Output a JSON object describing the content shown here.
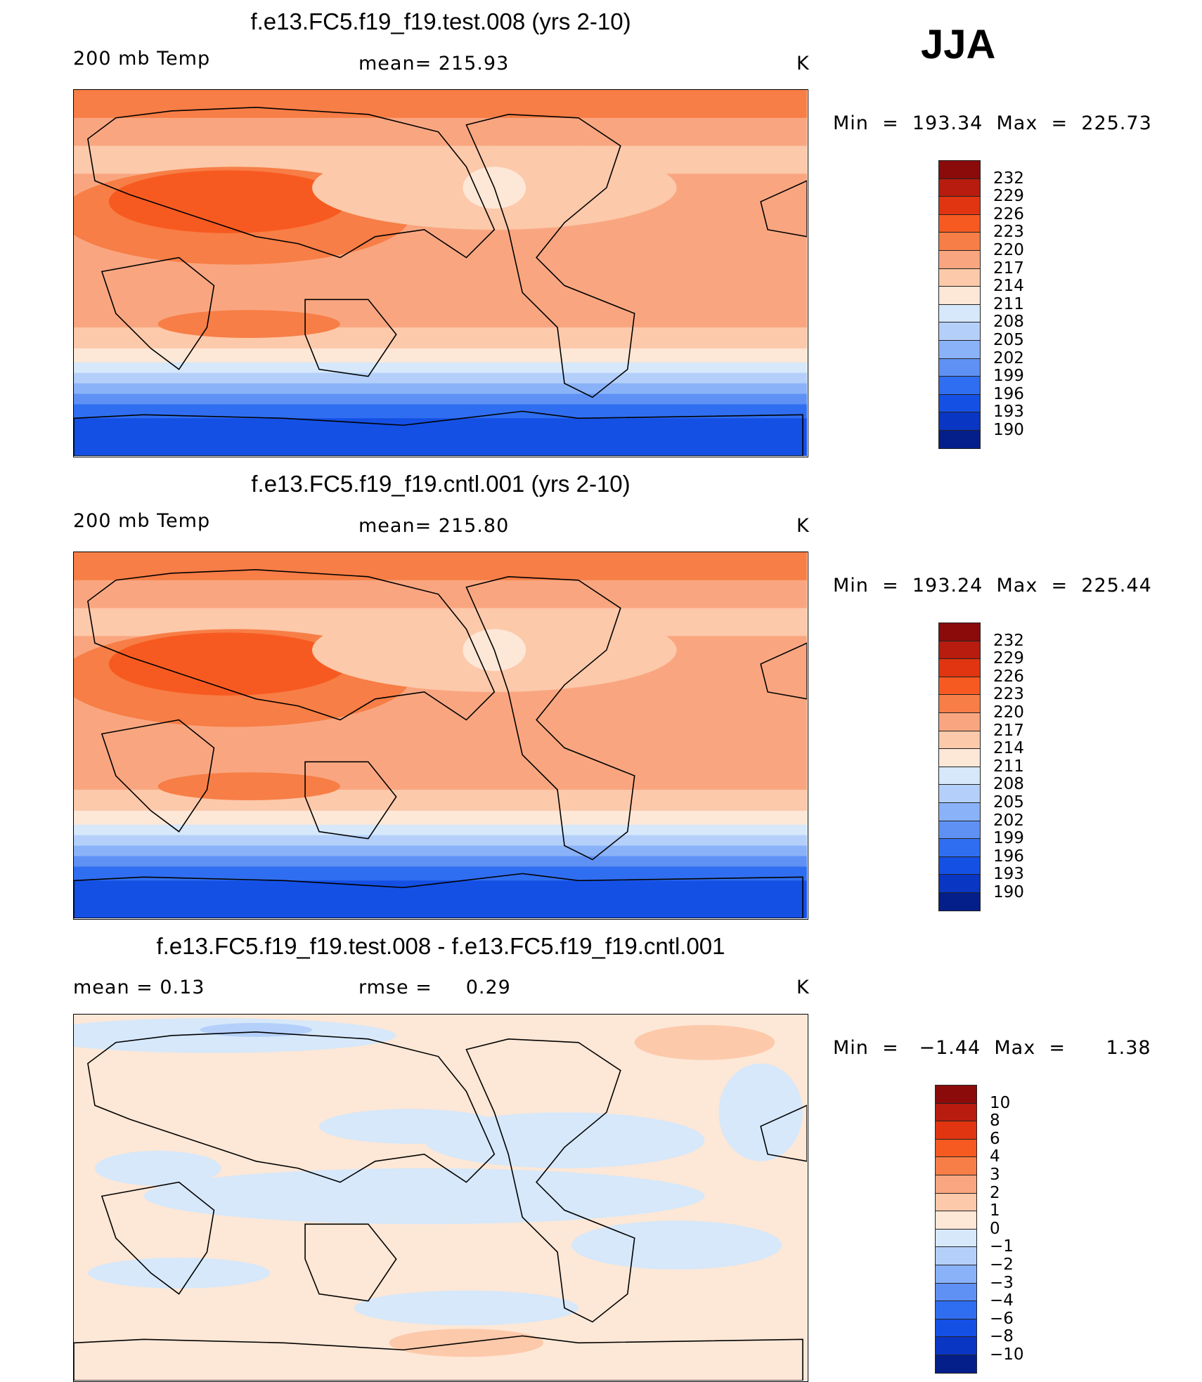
{
  "season": "JJA",
  "panels": [
    {
      "title": "f.e13.FC5.f19_f19.test.008 (yrs 2-10)",
      "left_label": "200 mb Temp",
      "center_label": "mean= 215.93",
      "unit": "K",
      "minmax": "Min  =  193.34  Max  =  225.73",
      "type": "absolute"
    },
    {
      "title": "f.e13.FC5.f19_f19.cntl.001 (yrs 2-10)",
      "left_label": "200 mb Temp",
      "center_label": "mean= 215.80",
      "unit": "K",
      "minmax": "Min  =  193.24  Max  =  225.44",
      "type": "absolute"
    },
    {
      "title": "f.e13.FC5.f19_f19.test.008 - f.e13.FC5.f19_f19.cntl.001",
      "left_label": "mean =     0.13",
      "center_label": "rmse =     0.29",
      "unit": "K",
      "minmax": "Min  =   −1.44  Max  =      1.38",
      "type": "difference"
    }
  ],
  "colorbar_abs": {
    "labels": [
      "232",
      "229",
      "226",
      "223",
      "220",
      "217",
      "214",
      "211",
      "208",
      "205",
      "202",
      "199",
      "196",
      "193",
      "190"
    ],
    "colors": [
      "#8b0b0b",
      "#b71c0e",
      "#e03510",
      "#f75a20",
      "#f77e46",
      "#f9a680",
      "#fcc9aa",
      "#fde7d6",
      "#d6e8fa",
      "#b4d0fa",
      "#8ab2f8",
      "#5f91f5",
      "#2f6ef0",
      "#1450e4",
      "#0a36c4",
      "#041f8a"
    ]
  },
  "colorbar_diff": {
    "labels": [
      "10",
      "8",
      "6",
      "4",
      "3",
      "2",
      "1",
      "0",
      "−1",
      "−2",
      "−3",
      "−4",
      "−6",
      "−8",
      "−10"
    ],
    "colors": [
      "#8b0b0b",
      "#b71c0e",
      "#e03510",
      "#f75a20",
      "#f77e46",
      "#f9a680",
      "#fcc9aa",
      "#fde7d6",
      "#d6e8fa",
      "#b4d0fa",
      "#8ab2f8",
      "#5f91f5",
      "#2f6ef0",
      "#1450e4",
      "#0a36c4",
      "#041f8a"
    ]
  }
}
